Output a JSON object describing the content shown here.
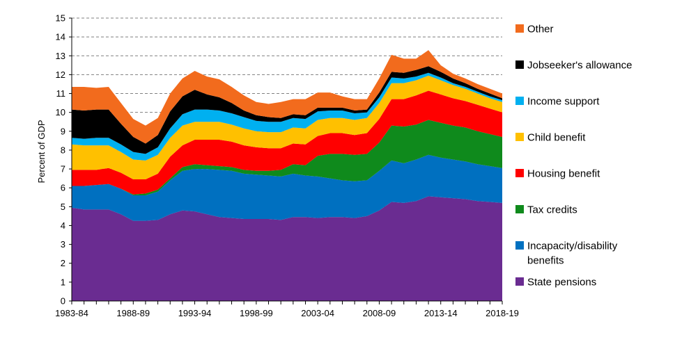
{
  "chart_data": {
    "type": "area",
    "stacked": true,
    "ylabel": "Percent of GDP",
    "xlabel": "",
    "ylim": [
      0,
      15
    ],
    "yticks": [
      "0",
      "1",
      "2",
      "3",
      "4",
      "5",
      "6",
      "7",
      "8",
      "9",
      "10",
      "11",
      "12",
      "13",
      "14",
      "15"
    ],
    "xtick_labels": [
      "1983-84",
      "1988-89",
      "1993-94",
      "1998-99",
      "2003-04",
      "2008-09",
      "2013-14",
      "2018-19"
    ],
    "grid": "horizontal dashed",
    "legend_position": "right",
    "x": [
      "1983-84",
      "1984-85",
      "1985-86",
      "1986-87",
      "1987-88",
      "1988-89",
      "1989-90",
      "1990-91",
      "1991-92",
      "1992-93",
      "1993-94",
      "1994-95",
      "1995-96",
      "1996-97",
      "1997-98",
      "1998-99",
      "1999-00",
      "2000-01",
      "2001-02",
      "2002-03",
      "2003-04",
      "2004-05",
      "2005-06",
      "2006-07",
      "2007-08",
      "2008-09",
      "2009-10",
      "2010-11",
      "2011-12",
      "2012-13",
      "2013-14",
      "2014-15",
      "2015-16",
      "2016-17",
      "2017-18",
      "2018-19"
    ],
    "series": [
      {
        "name": "State pensions",
        "color": "#6a2c91",
        "values": [
          4.95,
          4.85,
          4.85,
          4.85,
          4.6,
          4.25,
          4.25,
          4.3,
          4.6,
          4.8,
          4.75,
          4.6,
          4.45,
          4.4,
          4.35,
          4.35,
          4.35,
          4.3,
          4.45,
          4.45,
          4.4,
          4.45,
          4.45,
          4.4,
          4.5,
          4.8,
          5.25,
          5.2,
          5.3,
          5.55,
          5.5,
          5.45,
          5.4,
          5.3,
          5.25,
          5.2
        ]
      },
      {
        "name": "Incapacity/disability benefits",
        "color": "#0070c0",
        "values": [
          1.15,
          1.25,
          1.3,
          1.35,
          1.35,
          1.35,
          1.35,
          1.5,
          1.8,
          2.1,
          2.25,
          2.4,
          2.5,
          2.5,
          2.4,
          2.35,
          2.3,
          2.3,
          2.3,
          2.2,
          2.2,
          2.05,
          1.95,
          1.95,
          1.9,
          2.1,
          2.2,
          2.1,
          2.2,
          2.2,
          2.1,
          2.05,
          2.0,
          1.95,
          1.9,
          1.85
        ]
      },
      {
        "name": "Tax credits",
        "color": "#0f8a1c",
        "values": [
          0,
          0,
          0,
          0,
          0,
          0.05,
          0.1,
          0.1,
          0.1,
          0.2,
          0.25,
          0.2,
          0.2,
          0.2,
          0.2,
          0.2,
          0.25,
          0.35,
          0.5,
          0.55,
          1.1,
          1.3,
          1.4,
          1.4,
          1.4,
          1.5,
          1.85,
          1.95,
          1.85,
          1.85,
          1.85,
          1.8,
          1.8,
          1.75,
          1.7,
          1.65
        ]
      },
      {
        "name": "Housing benefit",
        "color": "#ff0000",
        "values": [
          0.85,
          0.85,
          0.8,
          0.85,
          0.85,
          0.8,
          0.75,
          0.85,
          1.15,
          1.15,
          1.3,
          1.35,
          1.4,
          1.35,
          1.3,
          1.25,
          1.2,
          1.15,
          1.1,
          1.1,
          1.05,
          1.1,
          1.1,
          1.05,
          1.1,
          1.25,
          1.4,
          1.45,
          1.55,
          1.55,
          1.5,
          1.45,
          1.4,
          1.4,
          1.35,
          1.3
        ]
      },
      {
        "name": "Child benefit",
        "color": "#ffc000",
        "values": [
          1.35,
          1.3,
          1.3,
          1.2,
          1.1,
          1.05,
          1.0,
          1.0,
          1.0,
          1.05,
          0.95,
          0.95,
          0.95,
          0.9,
          0.9,
          0.85,
          0.85,
          0.85,
          0.85,
          0.85,
          0.85,
          0.8,
          0.8,
          0.8,
          0.8,
          0.85,
          0.85,
          0.85,
          0.8,
          0.8,
          0.75,
          0.7,
          0.65,
          0.6,
          0.55,
          0.55
        ]
      },
      {
        "name": "Income support",
        "color": "#00b0f0",
        "values": [
          0.35,
          0.35,
          0.4,
          0.4,
          0.4,
          0.4,
          0.35,
          0.4,
          0.5,
          0.6,
          0.65,
          0.65,
          0.6,
          0.6,
          0.6,
          0.55,
          0.55,
          0.55,
          0.5,
          0.5,
          0.45,
          0.4,
          0.4,
          0.35,
          0.3,
          0.3,
          0.3,
          0.25,
          0.2,
          0.15,
          0.15,
          0.1,
          0.1,
          0.1,
          0.1,
          0.1
        ]
      },
      {
        "name": "Jobseeker's allowance",
        "color": "#000000",
        "values": [
          1.5,
          1.5,
          1.5,
          1.5,
          1.1,
          0.8,
          0.55,
          0.65,
          0.9,
          0.95,
          1.05,
          0.8,
          0.7,
          0.55,
          0.35,
          0.3,
          0.25,
          0.2,
          0.2,
          0.2,
          0.2,
          0.15,
          0.15,
          0.15,
          0.15,
          0.25,
          0.3,
          0.3,
          0.35,
          0.35,
          0.3,
          0.25,
          0.2,
          0.15,
          0.15,
          0.1
        ]
      },
      {
        "name": "Other",
        "color": "#f26b1d",
        "values": [
          1.2,
          1.25,
          1.15,
          1.2,
          1.1,
          0.95,
          0.95,
          0.9,
          0.95,
          0.95,
          1.0,
          0.95,
          0.95,
          0.85,
          0.8,
          0.7,
          0.7,
          0.85,
          0.8,
          0.85,
          0.8,
          0.8,
          0.6,
          0.6,
          0.55,
          0.75,
          0.9,
          0.75,
          0.6,
          0.85,
          0.35,
          0.25,
          0.25,
          0.25,
          0.25,
          0.25
        ]
      }
    ]
  }
}
